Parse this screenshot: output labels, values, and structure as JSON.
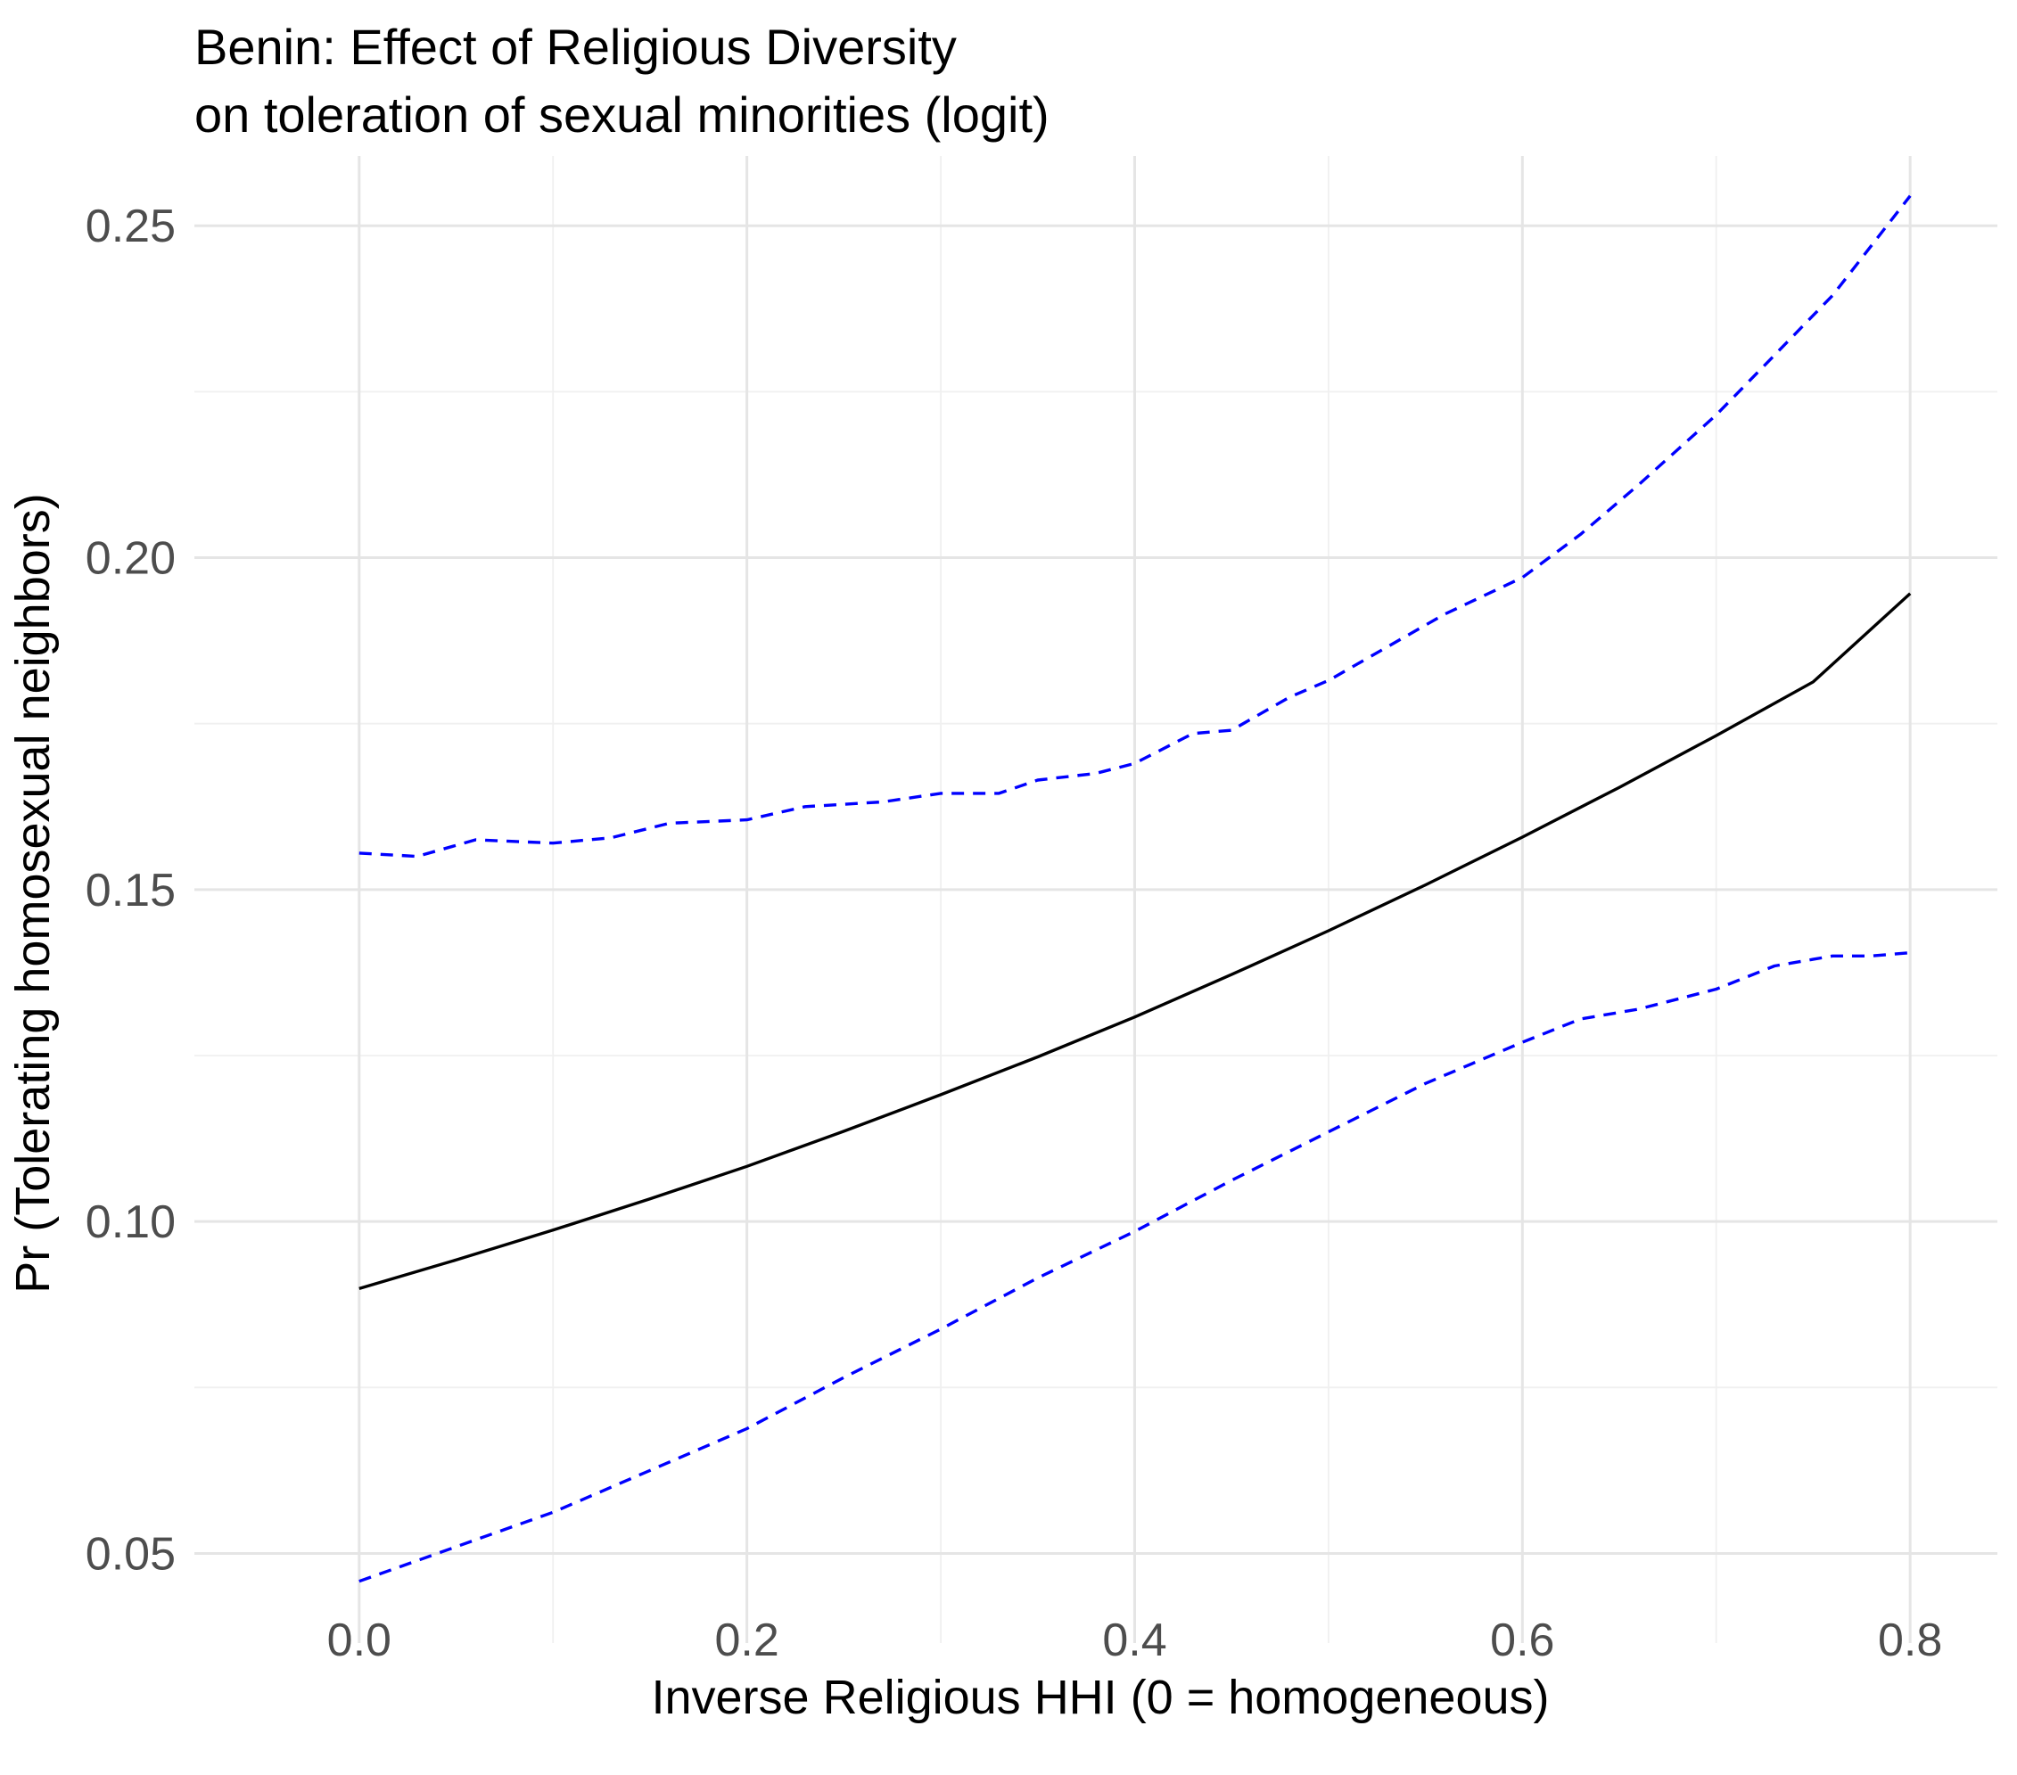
{
  "chart_data": {
    "type": "line",
    "title": "Benin: Effect of Religious Diversity",
    "subtitle": "on toleration of sexual minorities (logit)",
    "xlabel": "Inverse Religious HHI (0 = homogeneous)",
    "ylabel": "Pr (Tolerating homosexual neighbors)",
    "xlim": [
      -0.085,
      0.845
    ],
    "ylim": [
      0.0365,
      0.2605
    ],
    "x_ticks": [
      0.0,
      0.2,
      0.4,
      0.6,
      0.8
    ],
    "x_tick_labels": [
      "0.0",
      "0.2",
      "0.4",
      "0.6",
      "0.8"
    ],
    "y_ticks": [
      0.05,
      0.1,
      0.15,
      0.2,
      0.25
    ],
    "y_tick_labels": [
      "0.05",
      "0.10",
      "0.15",
      "0.20",
      "0.25"
    ],
    "grid": true,
    "legend": "none",
    "colors": {
      "estimate": "#000000",
      "ci": "#0000ff"
    },
    "series": [
      {
        "role": "estimate",
        "style": "solid",
        "x": [
          0.0,
          0.05,
          0.1,
          0.15,
          0.2,
          0.25,
          0.3,
          0.35,
          0.4,
          0.45,
          0.5,
          0.55,
          0.6,
          0.65,
          0.7,
          0.75,
          0.8
        ],
        "values": [
          0.0899,
          0.0942,
          0.0987,
          0.1034,
          0.1083,
          0.1136,
          0.1191,
          0.1248,
          0.1308,
          0.1372,
          0.1438,
          0.1507,
          0.1579,
          0.1654,
          0.1732,
          0.1813,
          0.1946
        ]
      },
      {
        "role": "upper-ci",
        "style": "dashed",
        "x": [
          0.0,
          0.03,
          0.06,
          0.1,
          0.13,
          0.16,
          0.2,
          0.23,
          0.27,
          0.3,
          0.33,
          0.35,
          0.38,
          0.4,
          0.43,
          0.45,
          0.48,
          0.5,
          0.53,
          0.56,
          0.6,
          0.63,
          0.66,
          0.7,
          0.73,
          0.76,
          0.8
        ],
        "values": [
          0.1555,
          0.155,
          0.1575,
          0.157,
          0.1578,
          0.16,
          0.1605,
          0.1625,
          0.1632,
          0.1645,
          0.1645,
          0.1665,
          0.1675,
          0.169,
          0.1735,
          0.174,
          0.179,
          0.1815,
          0.1865,
          0.1915,
          0.197,
          0.2035,
          0.211,
          0.2215,
          0.2305,
          0.2395,
          0.2545
        ]
      },
      {
        "role": "lower-ci",
        "style": "dashed",
        "x": [
          0.0,
          0.05,
          0.1,
          0.15,
          0.2,
          0.25,
          0.3,
          0.35,
          0.4,
          0.45,
          0.5,
          0.55,
          0.6,
          0.63,
          0.66,
          0.7,
          0.73,
          0.76,
          0.78,
          0.8
        ],
        "values": [
          0.0458,
          0.051,
          0.0562,
          0.0625,
          0.0688,
          0.0765,
          0.0838,
          0.0915,
          0.0985,
          0.1062,
          0.1135,
          0.1208,
          0.127,
          0.1305,
          0.132,
          0.135,
          0.1385,
          0.14,
          0.14,
          0.1405
        ]
      }
    ]
  }
}
